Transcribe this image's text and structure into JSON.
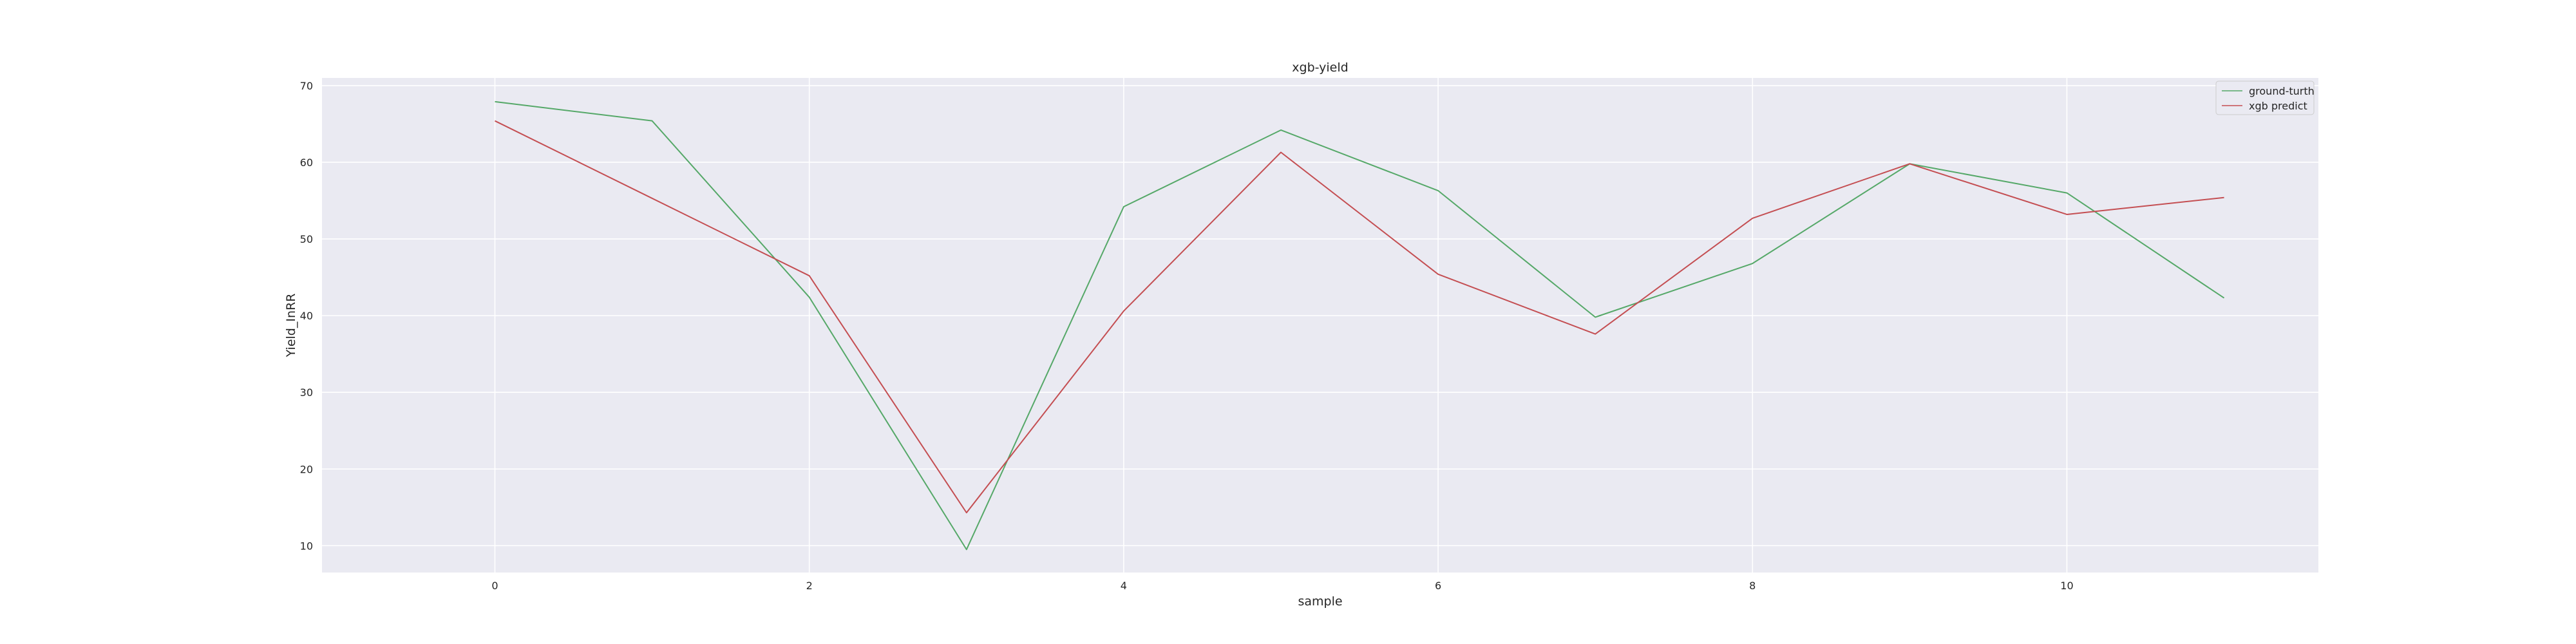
{
  "chart_data": {
    "type": "line",
    "title": "xgb-yield",
    "xlabel": "sample",
    "ylabel": "Yield_InRR",
    "x": [
      0,
      1,
      2,
      3,
      4,
      5,
      6,
      7,
      8,
      9,
      10,
      11
    ],
    "xlim": [
      -1.1,
      11.6
    ],
    "ylim": [
      6.5,
      71.0
    ],
    "xticks": [
      0,
      2,
      4,
      6,
      8,
      10
    ],
    "yticks": [
      10,
      20,
      30,
      40,
      50,
      60,
      70
    ],
    "grid": true,
    "legend_position": "top-right",
    "series": [
      {
        "name": "ground-turth",
        "color": "#55a868",
        "values": [
          67.9,
          65.4,
          42.4,
          9.5,
          54.2,
          64.2,
          56.3,
          39.8,
          46.8,
          59.8,
          56.0,
          42.3
        ]
      },
      {
        "name": "xgb predict",
        "color": "#c44e52",
        "values": [
          65.4,
          55.3,
          45.2,
          14.3,
          40.6,
          61.3,
          45.4,
          37.6,
          52.7,
          59.8,
          53.2,
          55.4
        ]
      }
    ],
    "background_color": "#eaeaf2",
    "grid_color": "#ffffff"
  }
}
